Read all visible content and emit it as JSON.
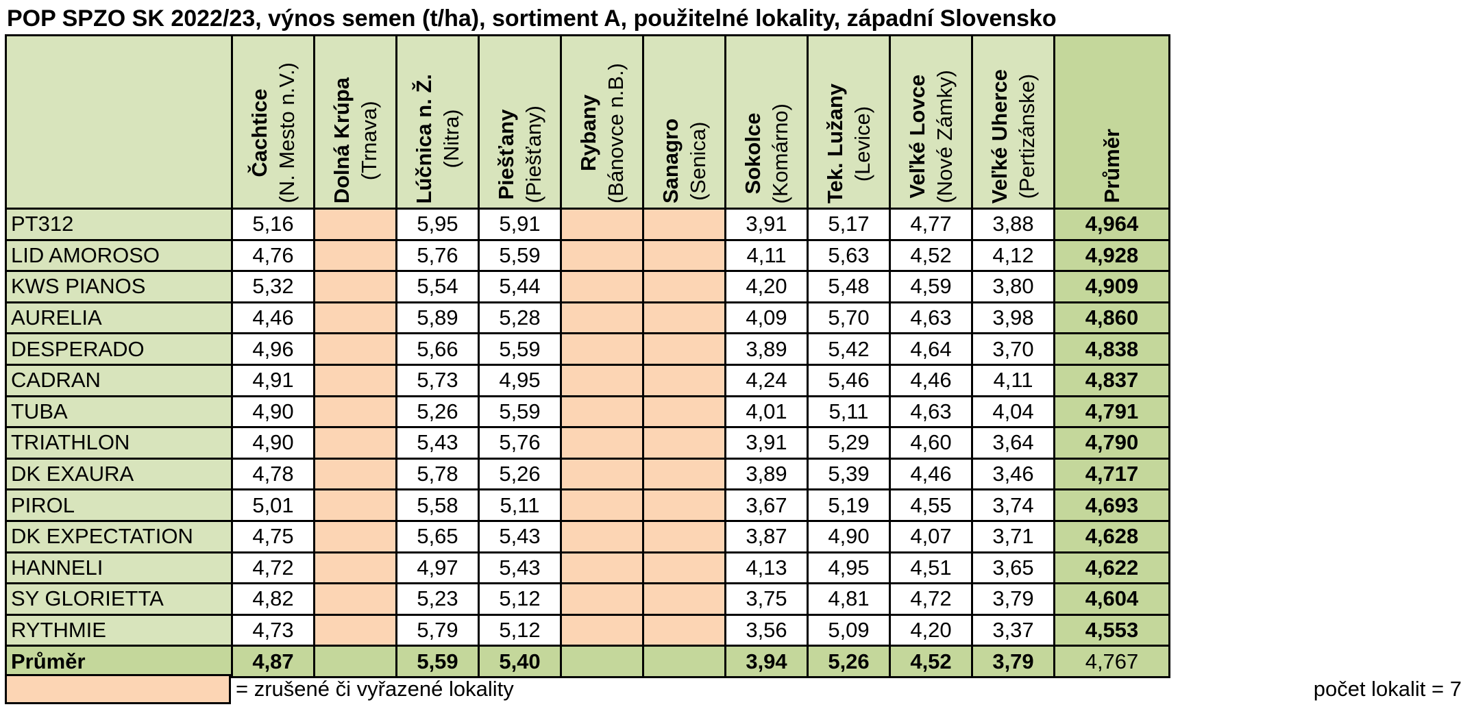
{
  "title": "POP SPZO SK 2022/23, výnos semen (t/ha), sortiment A, použitelné lokality, západní Slovensko",
  "columns": [
    {
      "name": "Čachtice",
      "sub": "(N. Mesto n.V.)",
      "active": true
    },
    {
      "name": "Dolná Krúpa",
      "sub": "(Trnava)",
      "active": false
    },
    {
      "name": "Lúčnica n. Ž.",
      "sub": "(Nitra)",
      "active": true
    },
    {
      "name": "Piešťany",
      "sub": "(Piešťany)",
      "active": true
    },
    {
      "name": "Rybany",
      "sub": "(Bánovce n.B.)",
      "active": false
    },
    {
      "name": "Sanagro",
      "sub": "(Senica)",
      "active": false
    },
    {
      "name": "Sokolce",
      "sub": "(Komárno)",
      "active": true
    },
    {
      "name": "Tek. Lužany",
      "sub": "(Levice)",
      "active": true
    },
    {
      "name": "Veľké Lovce",
      "sub": "(Nové Zámky)",
      "active": true
    },
    {
      "name": "Veľké Uherce",
      "sub": "(Pertizánske)",
      "active": true
    }
  ],
  "avg_header": "Průměr",
  "rows": [
    {
      "name": "PT312",
      "values": [
        "5,16",
        "",
        "5,95",
        "5,91",
        "",
        "",
        "3,91",
        "5,17",
        "4,77",
        "3,88"
      ],
      "avg": "4,964"
    },
    {
      "name": "LID AMOROSO",
      "values": [
        "4,76",
        "",
        "5,76",
        "5,59",
        "",
        "",
        "4,11",
        "5,63",
        "4,52",
        "4,12"
      ],
      "avg": "4,928"
    },
    {
      "name": "KWS PIANOS",
      "values": [
        "5,32",
        "",
        "5,54",
        "5,44",
        "",
        "",
        "4,20",
        "5,48",
        "4,59",
        "3,80"
      ],
      "avg": "4,909"
    },
    {
      "name": "AURELIA",
      "values": [
        "4,46",
        "",
        "5,89",
        "5,28",
        "",
        "",
        "4,09",
        "5,70",
        "4,63",
        "3,98"
      ],
      "avg": "4,860"
    },
    {
      "name": "DESPERADO",
      "values": [
        "4,96",
        "",
        "5,66",
        "5,59",
        "",
        "",
        "3,89",
        "5,42",
        "4,64",
        "3,70"
      ],
      "avg": "4,838"
    },
    {
      "name": "CADRAN",
      "values": [
        "4,91",
        "",
        "5,73",
        "4,95",
        "",
        "",
        "4,24",
        "5,46",
        "4,46",
        "4,11"
      ],
      "avg": "4,837"
    },
    {
      "name": "TUBA",
      "values": [
        "4,90",
        "",
        "5,26",
        "5,59",
        "",
        "",
        "4,01",
        "5,11",
        "4,63",
        "4,04"
      ],
      "avg": "4,791"
    },
    {
      "name": "TRIATHLON",
      "values": [
        "4,90",
        "",
        "5,43",
        "5,76",
        "",
        "",
        "3,91",
        "5,29",
        "4,60",
        "3,64"
      ],
      "avg": "4,790"
    },
    {
      "name": "DK EXAURA",
      "values": [
        "4,78",
        "",
        "5,78",
        "5,26",
        "",
        "",
        "3,89",
        "5,39",
        "4,46",
        "3,46"
      ],
      "avg": "4,717"
    },
    {
      "name": "PIROL",
      "values": [
        "5,01",
        "",
        "5,58",
        "5,11",
        "",
        "",
        "3,67",
        "5,19",
        "4,55",
        "3,74"
      ],
      "avg": "4,693"
    },
    {
      "name": "DK EXPECTATION",
      "values": [
        "4,75",
        "",
        "5,65",
        "5,43",
        "",
        "",
        "3,87",
        "4,90",
        "4,07",
        "3,71"
      ],
      "avg": "4,628"
    },
    {
      "name": "HANNELI",
      "values": [
        "4,72",
        "",
        "4,97",
        "5,43",
        "",
        "",
        "4,13",
        "4,95",
        "4,51",
        "3,65"
      ],
      "avg": "4,622"
    },
    {
      "name": "SY GLORIETTA",
      "values": [
        "4,82",
        "",
        "5,23",
        "5,12",
        "",
        "",
        "3,75",
        "4,81",
        "4,72",
        "3,79"
      ],
      "avg": "4,604"
    },
    {
      "name": "RYTHMIE",
      "values": [
        "4,73",
        "",
        "5,79",
        "5,12",
        "",
        "",
        "3,56",
        "5,09",
        "4,20",
        "3,37"
      ],
      "avg": "4,553"
    }
  ],
  "total": {
    "name": "Průměr",
    "values": [
      "4,87",
      "",
      "5,59",
      "5,40",
      "",
      "",
      "3,94",
      "5,26",
      "4,52",
      "3,79"
    ],
    "avg": "4,767"
  },
  "legend": {
    "text": "= zrušené či vyřazené lokality",
    "swatch_color": "#fcd5b4"
  },
  "count_text": "počet lokalit = 7",
  "colors": {
    "header_bg": "#d8e4bc",
    "avg_bg": "#c4d79b",
    "excluded_bg": "#fcd5b4"
  }
}
